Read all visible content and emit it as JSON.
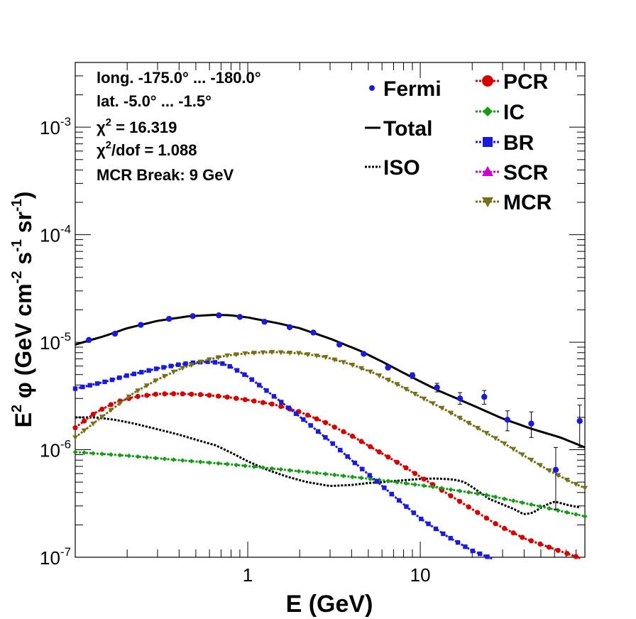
{
  "chart_data": {
    "type": "line",
    "title": "",
    "xlabel": "E (GeV)",
    "ylabel_parts": [
      "E",
      "2",
      " φ (GeV cm",
      "-2",
      " s",
      "-1",
      " sr",
      "-1",
      ")"
    ],
    "x_scale": "log",
    "y_scale": "log",
    "xlim": [
      0.1,
      90
    ],
    "ylim": [
      1e-07,
      0.004
    ],
    "x_ticks": [
      {
        "v": 1,
        "label": "1"
      },
      {
        "v": 10,
        "label": "10"
      }
    ],
    "y_ticks": [
      {
        "v": 1e-07,
        "base": "10",
        "exp": "-7"
      },
      {
        "v": 1e-06,
        "base": "10",
        "exp": "-6"
      },
      {
        "v": 1e-05,
        "base": "10",
        "exp": "-5"
      },
      {
        "v": 0.0001,
        "base": "10",
        "exp": "-4"
      },
      {
        "v": 0.001,
        "base": "10",
        "exp": "-3"
      }
    ],
    "info_lines": [
      {
        "text": "long. -175.0° ... -180.0°"
      },
      {
        "text": "lat. -5.0° ... -1.5°"
      },
      {
        "pre": "χ",
        "sup": "2",
        "post": " = 16.319"
      },
      {
        "pre": "χ",
        "sup": "2",
        "post": "/dof = 1.088"
      },
      {
        "text": "MCR Break:  9 GeV"
      }
    ],
    "legend_left": [
      {
        "label": "Fermi",
        "kind": "point",
        "color": "#1a1adb"
      },
      {
        "label": "Total",
        "kind": "solid",
        "color": "#000000"
      },
      {
        "label": "ISO",
        "kind": "dotted",
        "color": "#000000"
      }
    ],
    "legend_right": [
      {
        "label": "PCR",
        "kind": "circle",
        "color": "#d40000"
      },
      {
        "label": "IC",
        "kind": "diamond",
        "color": "#1a9a1a"
      },
      {
        "label": "BR",
        "kind": "square",
        "color": "#1a1adb"
      },
      {
        "label": "SCR",
        "kind": "triangle-up",
        "color": "#cc00cc"
      },
      {
        "label": "MCR",
        "kind": "triangle-down",
        "color": "#77701a"
      }
    ],
    "fermi": {
      "name": "Fermi",
      "color": "#1a1adb",
      "points": [
        {
          "x": 0.12,
          "y": 1.05e-05,
          "lo": 1.05e-05,
          "hi": 1.05e-05
        },
        {
          "x": 0.17,
          "y": 1.2e-05,
          "lo": 1.2e-05,
          "hi": 1.2e-05
        },
        {
          "x": 0.24,
          "y": 1.45e-05,
          "lo": 1.45e-05,
          "hi": 1.45e-05
        },
        {
          "x": 0.35,
          "y": 1.65e-05,
          "lo": 1.65e-05,
          "hi": 1.65e-05
        },
        {
          "x": 0.48,
          "y": 1.75e-05,
          "lo": 1.75e-05,
          "hi": 1.75e-05
        },
        {
          "x": 0.68,
          "y": 1.78e-05,
          "lo": 1.78e-05,
          "hi": 1.78e-05
        },
        {
          "x": 0.9,
          "y": 1.72e-05,
          "lo": 1.72e-05,
          "hi": 1.72e-05
        },
        {
          "x": 1.25,
          "y": 1.55e-05,
          "lo": 1.55e-05,
          "hi": 1.55e-05
        },
        {
          "x": 1.75,
          "y": 1.38e-05,
          "lo": 1.38e-05,
          "hi": 1.38e-05
        },
        {
          "x": 2.4,
          "y": 1.23e-05,
          "lo": 1.23e-05,
          "hi": 1.23e-05
        },
        {
          "x": 3.4,
          "y": 9.5e-06,
          "lo": 9.5e-06,
          "hi": 9.5e-06
        },
        {
          "x": 4.7,
          "y": 7.8e-06,
          "lo": 7.8e-06,
          "hi": 7.8e-06
        },
        {
          "x": 6.5,
          "y": 5.8e-06,
          "lo": 5.6e-06,
          "hi": 6.1e-06
        },
        {
          "x": 9.0,
          "y": 4.9e-06,
          "lo": 4.6e-06,
          "hi": 5.2e-06
        },
        {
          "x": 12.5,
          "y": 3.8e-06,
          "lo": 3.45e-06,
          "hi": 4.15e-06
        },
        {
          "x": 17.0,
          "y": 3e-06,
          "lo": 2.65e-06,
          "hi": 3.4e-06
        },
        {
          "x": 23.5,
          "y": 3.1e-06,
          "lo": 2.65e-06,
          "hi": 3.55e-06
        },
        {
          "x": 32.0,
          "y": 1.9e-06,
          "lo": 1.5e-06,
          "hi": 2.3e-06
        },
        {
          "x": 44.0,
          "y": 1.75e-06,
          "lo": 1.3e-06,
          "hi": 2.25e-06
        },
        {
          "x": 61.0,
          "y": 6.5e-07,
          "lo": 2.8e-07,
          "hi": 1.05e-06
        },
        {
          "x": 84.0,
          "y": 1.85e-06,
          "lo": 1.05e-06,
          "hi": 2.6e-06
        }
      ]
    },
    "series": [
      {
        "name": "Total",
        "color": "#000000",
        "style": "solid",
        "marker": "none",
        "x": [
          0.1,
          0.15,
          0.2,
          0.3,
          0.45,
          0.65,
          0.8,
          1.0,
          1.5,
          2.0,
          3.0,
          4.5,
          6.0,
          9.0,
          13.0,
          20.0,
          30.0,
          45.0,
          65.0,
          90.0
        ],
        "y": [
          9.5e-06,
          1.15e-05,
          1.35e-05,
          1.58e-05,
          1.74e-05,
          1.8e-05,
          1.78e-05,
          1.7e-05,
          1.5e-05,
          1.35e-05,
          1.08e-05,
          8.3e-06,
          6.6e-06,
          4.7e-06,
          3.5e-06,
          2.6e-06,
          1.95e-06,
          1.55e-06,
          1.3e-06,
          1.05e-06
        ]
      },
      {
        "name": "ISO",
        "color": "#000000",
        "style": "dotted",
        "marker": "none",
        "x": [
          0.1,
          0.13,
          0.17,
          0.22,
          0.3,
          0.4,
          0.5,
          0.65,
          0.8,
          1.0,
          1.3,
          1.7,
          2.2,
          3.0,
          4.0,
          5.0,
          6.0,
          8.0,
          10.0,
          12.0,
          14.0,
          16.0,
          18.0,
          20.0,
          25.0,
          30.0,
          35.0,
          40.0,
          45.0,
          52.0,
          60.0,
          72.0,
          85.0
        ],
        "y": [
          2e-06,
          2e-06,
          1.9e-06,
          1.75e-06,
          1.55e-06,
          1.38e-06,
          1.24e-06,
          1.1e-06,
          9.4e-07,
          7.8e-07,
          6.5e-07,
          5.6e-07,
          5e-07,
          4.6e-07,
          4.7e-07,
          4.9e-07,
          5e-07,
          5.2e-07,
          5.35e-07,
          5.4e-07,
          5.35e-07,
          5.25e-07,
          5e-07,
          4.5e-07,
          3.5e-07,
          3.1e-07,
          2.8e-07,
          2.5e-07,
          2.6e-07,
          3e-07,
          3.3e-07,
          3.05e-07,
          2.9e-07
        ]
      },
      {
        "name": "PCR",
        "color": "#d40000",
        "style": "dotted",
        "marker": "circle",
        "x": [
          0.1,
          0.13,
          0.17,
          0.22,
          0.3,
          0.4,
          0.55,
          0.75,
          1.0,
          1.4,
          2.0,
          2.8,
          4.0,
          5.5,
          7.5,
          10.0,
          14.0,
          20.0,
          28.0,
          40.0,
          55.0,
          75.0,
          90.0
        ],
        "y": [
          1.6e-06,
          2.2e-06,
          2.75e-06,
          3.1e-06,
          3.3e-06,
          3.32e-06,
          3.25e-06,
          3.1e-06,
          2.9e-06,
          2.65e-06,
          2.25e-06,
          1.8e-06,
          1.35e-06,
          1e-06,
          7.5e-07,
          5.6e-07,
          4e-07,
          2.8e-07,
          2e-07,
          1.5e-07,
          1.25e-07,
          1.05e-07,
          9.5e-08
        ]
      },
      {
        "name": "IC",
        "color": "#1a9a1a",
        "style": "dotted",
        "marker": "diamond",
        "x": [
          0.1,
          0.2,
          0.4,
          0.8,
          1.5,
          3.0,
          6.0,
          12.0,
          24.0,
          48.0,
          90.0
        ],
        "y": [
          9.5e-07,
          8.8e-07,
          8e-07,
          7.3e-07,
          6.6e-07,
          5.9e-07,
          5.2e-07,
          4.5e-07,
          3.8e-07,
          3e-07,
          2.4e-07
        ]
      },
      {
        "name": "BR",
        "color": "#1a1adb",
        "style": "dotted",
        "marker": "square",
        "x": [
          0.1,
          0.15,
          0.2,
          0.3,
          0.4,
          0.5,
          0.6,
          0.7,
          0.8,
          1.0,
          1.3,
          1.7,
          2.2,
          3.0,
          4.0,
          5.5,
          7.5,
          10.0,
          14.0,
          20.0,
          27.0
        ],
        "y": [
          3.7e-06,
          4.3e-06,
          4.9e-06,
          5.7e-06,
          6.2e-06,
          6.5e-06,
          6.6e-06,
          6.4e-06,
          5.9e-06,
          4.8e-06,
          3.5e-06,
          2.5e-06,
          1.8e-06,
          1.2e-06,
          8e-07,
          5.2e-07,
          3.4e-07,
          2.3e-07,
          1.6e-07,
          1.15e-07,
          9.5e-08
        ]
      },
      {
        "name": "MCR",
        "color": "#77701a",
        "style": "dotted",
        "marker": "triangle-down",
        "x": [
          0.1,
          0.13,
          0.17,
          0.22,
          0.3,
          0.4,
          0.55,
          0.75,
          1.0,
          1.4,
          2.0,
          2.8,
          4.0,
          5.5,
          7.5,
          10.0,
          14.0,
          20.0,
          28.0,
          40.0,
          55.0,
          75.0,
          90.0
        ],
        "y": [
          1.3e-06,
          1.8e-06,
          2.5e-06,
          3.4e-06,
          4.5e-06,
          5.6e-06,
          6.7e-06,
          7.5e-06,
          7.9e-06,
          8.1e-06,
          7.9e-06,
          7.3e-06,
          6.2e-06,
          5.1e-06,
          4e-06,
          3.1e-06,
          2.35e-06,
          1.7e-06,
          1.25e-06,
          8.8e-07,
          6.5e-07,
          5e-07,
          4.4e-07
        ]
      }
    ]
  }
}
